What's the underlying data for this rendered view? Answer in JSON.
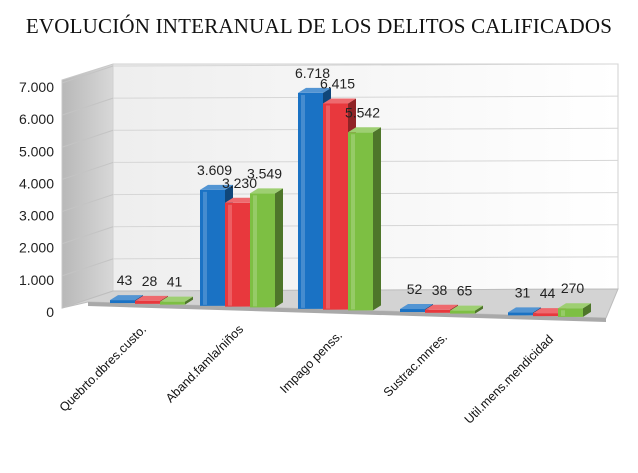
{
  "chart_data": {
    "type": "bar",
    "title": "EVOLUCIÓN INTERANUAL DE LOS DELITOS CALIFICADOS",
    "xlabel": "",
    "ylabel": "",
    "ylim": [
      0,
      7000
    ],
    "y_ticks": [
      "0",
      "1.000",
      "2.000",
      "3.000",
      "4.000",
      "5.000",
      "6.000",
      "7.000"
    ],
    "y_tick_values": [
      0,
      1000,
      2000,
      3000,
      4000,
      5000,
      6000,
      7000
    ],
    "grid": true,
    "style": "3d-clustered-column",
    "categories": [
      "Quebrto.dbres.custo.",
      "Aband.famla/niños",
      "Impago penss.",
      "Sustrac.mnres.",
      "Util.mens.mendicidad"
    ],
    "series": [
      {
        "color": "#1a72c4",
        "values": [
          43,
          3609,
          6718,
          52,
          31
        ],
        "labels": [
          "43",
          "3.609",
          "6.718",
          "52",
          "31"
        ]
      },
      {
        "color": "#e8383d",
        "values": [
          28,
          3230,
          6415,
          38,
          44
        ],
        "labels": [
          "28",
          "3.230",
          "6.415",
          "38",
          "44"
        ]
      },
      {
        "color": "#7dbf43",
        "values": [
          41,
          3549,
          5542,
          65,
          270
        ],
        "labels": [
          "41",
          "3.549",
          "5.542",
          "65",
          "270"
        ]
      }
    ]
  }
}
